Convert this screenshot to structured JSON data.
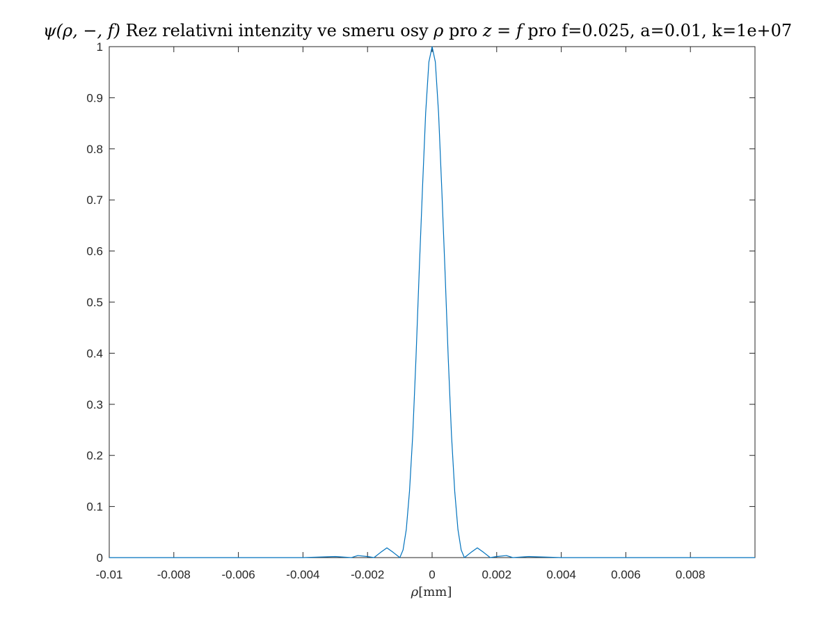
{
  "chart_data": {
    "type": "line",
    "title": {
      "prefix_math": "ψ(ρ, −, f)",
      "middle_text": " Rez relativni intenzity ve smeru osy ",
      "rho_math": "ρ",
      "pro_text": " pro ",
      "zf_math": "z = f",
      "suffix_text": " pro f=0.025, a=0.01, k=1e+07"
    },
    "xlabel": {
      "symbol": "ρ",
      "unit": "[mm]"
    },
    "ylabel": "",
    "xlim": [
      -0.01,
      0.01
    ],
    "ylim": [
      0,
      1
    ],
    "x_ticks": [
      -0.01,
      -0.008,
      -0.006,
      -0.004,
      -0.002,
      0,
      0.002,
      0.004,
      0.006,
      0.008
    ],
    "x_tick_labels": [
      "-0.01",
      "-0.008",
      "-0.006",
      "-0.004",
      "-0.002",
      "0",
      "0.002",
      "0.004",
      "0.006",
      "0.008"
    ],
    "y_ticks": [
      0,
      0.1,
      0.2,
      0.3,
      0.4,
      0.5,
      0.6,
      0.7,
      0.8,
      0.9,
      1
    ],
    "y_tick_labels": [
      "0",
      "0.1",
      "0.2",
      "0.3",
      "0.4",
      "0.5",
      "0.6",
      "0.7",
      "0.8",
      "0.9",
      "1"
    ],
    "grid": false,
    "line_color": "#0072BD",
    "series": [
      {
        "x": [
          -0.01,
          -0.006,
          -0.004,
          -0.0035,
          -0.003,
          -0.0025,
          -0.0023,
          -0.002,
          -0.0018,
          -0.0016,
          -0.0014,
          -0.0012,
          -0.001,
          -0.0009,
          -0.0008,
          -0.0007,
          -0.0006,
          -0.0005,
          -0.0004,
          -0.0003,
          -0.0002,
          -0.0001,
          0,
          0.0001,
          0.0002,
          0.0003,
          0.0004,
          0.0005,
          0.0006,
          0.0007,
          0.0008,
          0.0009,
          0.001,
          0.0012,
          0.0014,
          0.0016,
          0.0018,
          0.002,
          0.0023,
          0.0025,
          0.003,
          0.0035,
          0.004,
          0.006,
          0.01
        ],
        "y": [
          0,
          0,
          0,
          0.001,
          0.002,
          0,
          0.004,
          0.002,
          0,
          0.01,
          0.019,
          0.01,
          0,
          0.015,
          0.055,
          0.13,
          0.24,
          0.39,
          0.56,
          0.72,
          0.87,
          0.97,
          1,
          0.97,
          0.87,
          0.72,
          0.56,
          0.39,
          0.24,
          0.13,
          0.055,
          0.015,
          0,
          0.01,
          0.019,
          0.01,
          0,
          0.002,
          0.004,
          0,
          0.002,
          0.001,
          0,
          0,
          0
        ]
      }
    ]
  }
}
